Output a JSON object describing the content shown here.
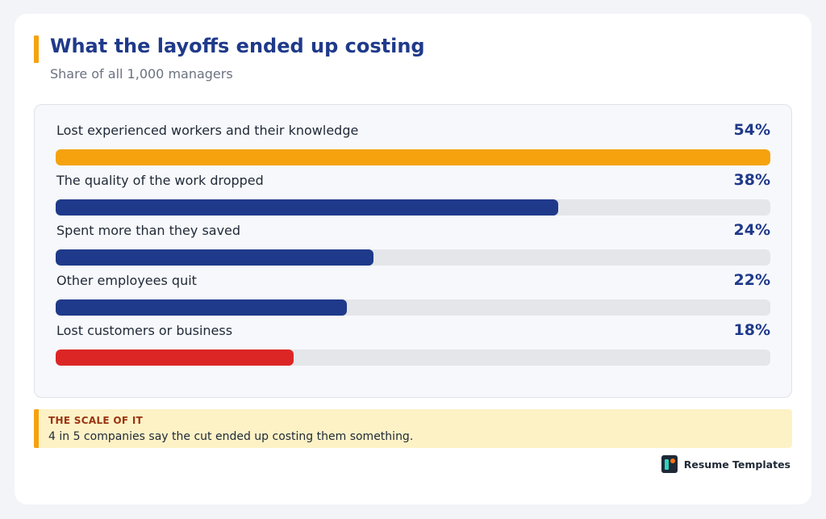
{
  "title": "What the layoffs ended up costing",
  "subtitle": "Share of all 1,000 managers",
  "chart_data": {
    "type": "bar",
    "orientation": "horizontal",
    "categories": [
      "Lost experienced workers and their knowledge",
      "The quality of the work dropped",
      "Spent more than they saved",
      "Other employees quit",
      "Lost customers or business"
    ],
    "values": [
      54,
      38,
      24,
      22,
      18
    ],
    "value_labels": [
      "54%",
      "38%",
      "24%",
      "22%",
      "18%"
    ],
    "colors": [
      "#f5a20e",
      "#1f3a8a",
      "#1f3a8a",
      "#1f3a8a",
      "#dc2626"
    ],
    "track_color": "#e5e6ea",
    "xlim": [
      0,
      54
    ],
    "grid": false,
    "title": "What the layoffs ended up costing",
    "subtitle": "Share of all 1,000 managers"
  },
  "callout": {
    "heading": "THE SCALE OF IT",
    "text": "4 in 5 companies say the cut ended up costing them something."
  },
  "brand": {
    "name": "Resume Templates",
    "icon": "resume-templates-logo-icon"
  },
  "colors": {
    "accent": "#f5a20e",
    "primary": "#1f3a8a",
    "alert": "#dc2626",
    "callout_bg": "#fdf2c6"
  }
}
